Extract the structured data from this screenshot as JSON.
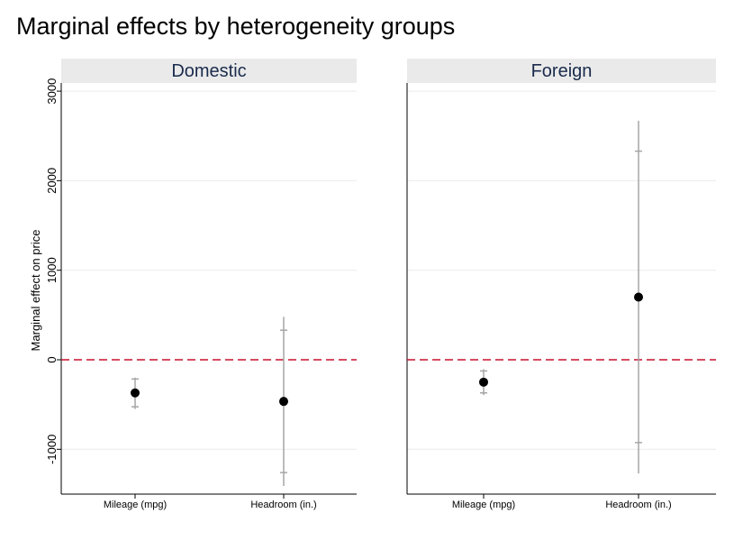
{
  "chart_data": {
    "type": "scatter",
    "title": "Marginal effects by heterogeneity groups",
    "ylabel": "Marginal effect on price",
    "ylim": [
      -1500,
      3050
    ],
    "yticks": [
      -1000,
      0,
      1000,
      2000,
      3000
    ],
    "reference_line": 0,
    "categories": [
      "Mileage (mpg)",
      "Headroom (in.)"
    ],
    "panels": [
      {
        "name": "Domestic",
        "points": [
          {
            "category": "Mileage (mpg)",
            "estimate": -370,
            "ci90": [
              -215,
              -525
            ],
            "ci95": [
              -200,
              -550
            ]
          },
          {
            "category": "Headroom (in.)",
            "estimate": -465,
            "ci90": [
              330,
              -1260
            ],
            "ci95": [
              480,
              -1410
            ]
          }
        ]
      },
      {
        "name": "Foreign",
        "points": [
          {
            "category": "Mileage (mpg)",
            "estimate": -250,
            "ci90": [
              -125,
              -370
            ],
            "ci95": [
              -105,
              -395
            ]
          },
          {
            "category": "Headroom (in.)",
            "estimate": 700,
            "ci90": [
              2330,
              -925
            ],
            "ci95": [
              2670,
              -1270
            ]
          }
        ]
      }
    ],
    "colors": {
      "panel_header": "#eaeaea",
      "panel_title": "#1a2b4c",
      "reference": "#c8102e",
      "ci": "#a6a6a6",
      "grid": "#ebebeb",
      "point": "#000000"
    }
  }
}
